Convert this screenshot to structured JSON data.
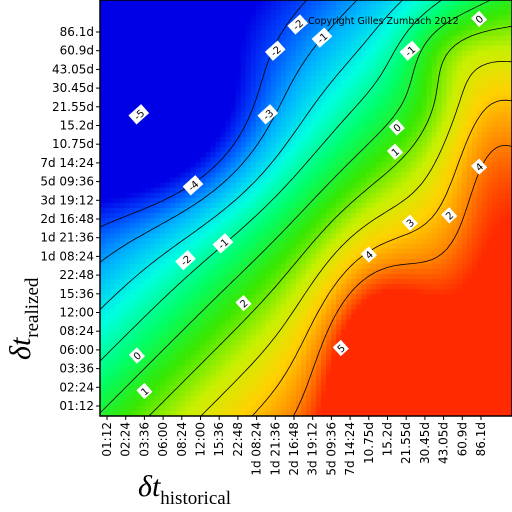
{
  "chart_data": {
    "type": "heatmap",
    "title": "",
    "xlabel": {
      "symbol": "δt",
      "subscript": "historical"
    },
    "ylabel": {
      "symbol": "δt",
      "subscript": "realized"
    },
    "x_ticks": [
      "01:12",
      "02:24",
      "03:36",
      "06:00",
      "08:24",
      "12:00",
      "15:36",
      "22:48",
      "1d 08:24",
      "1d 21:36",
      "2d 16:48",
      "3d 19:12",
      "5d 09:36",
      "7d 14:24",
      "10.75d",
      "15.2d",
      "21.55d",
      "30.45d",
      "43.05d",
      "60.9d",
      "86.1d"
    ],
    "y_ticks": [
      "01:12",
      "02:24",
      "03:36",
      "06:00",
      "08:24",
      "12:00",
      "15:36",
      "22:48",
      "1d 08:24",
      "1d 21:36",
      "2d 16:48",
      "3d 19:12",
      "5d 09:36",
      "7d 14:24",
      "10.75d",
      "15.2d",
      "21.55d",
      "30.45d",
      "43.05d",
      "60.9d",
      "86.1d"
    ],
    "colorscale": [
      "#0000e6",
      "#0050ff",
      "#00b4ff",
      "#00ffe0",
      "#00ff6a",
      "#38e800",
      "#c8f000",
      "#ffd200",
      "#ff8a00",
      "#ff2a00"
    ],
    "value_range": [
      -5,
      5
    ],
    "contour_labels": [
      {
        "value": "-5",
        "x_index": 1.7,
        "y_index": 15.6
      },
      {
        "value": "-4",
        "x_index": 4.6,
        "y_index": 11.8
      },
      {
        "value": "-3",
        "x_index": 8.6,
        "y_index": 15.6
      },
      {
        "value": "-2",
        "x_index": 9.0,
        "y_index": 19.0
      },
      {
        "value": "-2",
        "x_index": 4.2,
        "y_index": 7.8
      },
      {
        "value": "-1",
        "x_index": 11.5,
        "y_index": 19.7
      },
      {
        "value": "-1",
        "x_index": 16.2,
        "y_index": 19.0
      },
      {
        "value": "-1",
        "x_index": 6.2,
        "y_index": 8.7
      },
      {
        "value": "0",
        "x_index": 15.5,
        "y_index": 14.9
      },
      {
        "value": "0",
        "x_index": 1.6,
        "y_index": 2.7
      },
      {
        "value": "1",
        "x_index": 15.4,
        "y_index": 13.6
      },
      {
        "value": "1",
        "x_index": 2.0,
        "y_index": 0.8
      },
      {
        "value": "2",
        "x_index": 7.3,
        "y_index": 5.5
      },
      {
        "value": "2",
        "x_index": 18.3,
        "y_index": 10.2
      },
      {
        "value": "3",
        "x_index": 16.2,
        "y_index": 9.8
      },
      {
        "value": "4",
        "x_index": 14.0,
        "y_index": 8.1
      },
      {
        "value": "4",
        "x_index": 19.9,
        "y_index": 12.8
      },
      {
        "value": "5",
        "x_index": 12.5,
        "y_index": 3.1
      },
      {
        "value": "-2",
        "x_index": 10.2,
        "y_index": 20.4
      },
      {
        "value": "0",
        "x_index": 19.9,
        "y_index": 20.7
      }
    ],
    "copyright": "Copyright Gilles Zumbach 2012",
    "legend": "none",
    "grid": false
  }
}
